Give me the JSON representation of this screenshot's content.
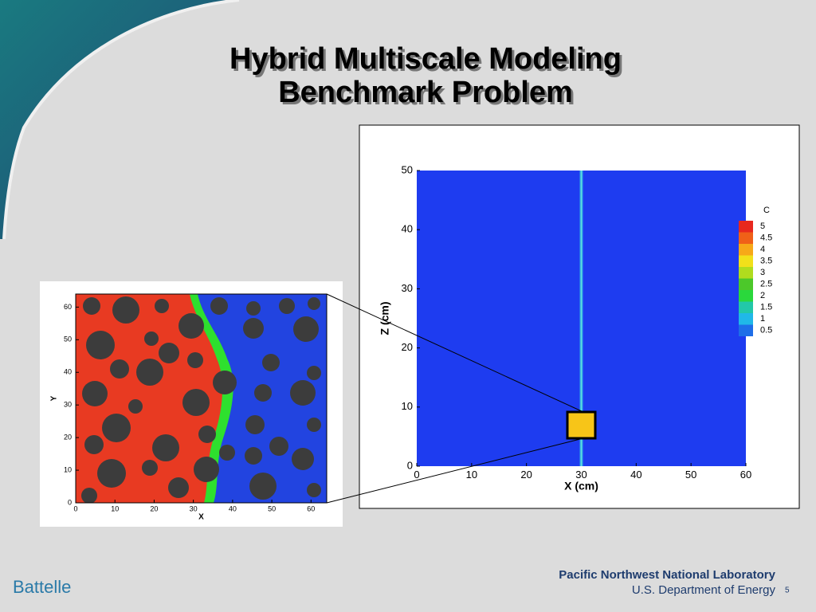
{
  "slide": {
    "title": [
      "Hybrid Multiscale Modeling",
      "Benchmark Problem"
    ],
    "footer_left": "Battelle",
    "footer_right": [
      "Pacific Northwest National Laboratory",
      "U.S. Department of Energy"
    ],
    "page_number": "5"
  },
  "chart_data": [
    {
      "type": "image",
      "xlabel": "X",
      "ylabel": "Y",
      "xlim": [
        0,
        64
      ],
      "xticks": [
        0,
        10,
        20,
        30,
        40,
        50,
        60
      ],
      "ylim": [
        0,
        64
      ],
      "yticks": [
        0,
        10,
        20,
        30,
        40,
        50,
        60
      ]
    },
    {
      "type": "contour",
      "xlabel": "X (cm)",
      "ylabel": "Z (cm)",
      "xlim": [
        0,
        60
      ],
      "xticks": [
        0,
        10,
        20,
        30,
        40,
        50,
        60
      ],
      "ylim": [
        0,
        50
      ],
      "yticks": [
        0,
        10,
        20,
        30,
        40,
        50
      ],
      "colorbar": {
        "title": "C",
        "levels": [
          5,
          4.5,
          4,
          3.5,
          3,
          2.5,
          2,
          1.5,
          1,
          0.5
        ],
        "colors": [
          "#e8281e",
          "#f06018",
          "#f7a818",
          "#f2e01a",
          "#b0dc1e",
          "#4cc82a",
          "#2ad83c",
          "#22c8a8",
          "#20b8e8",
          "#1e6ee8"
        ]
      }
    }
  ]
}
